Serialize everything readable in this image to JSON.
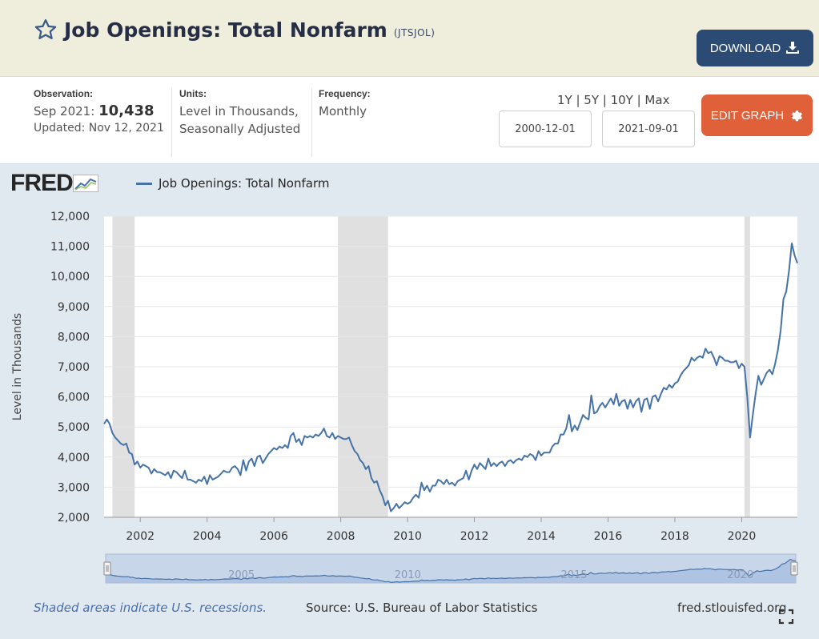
{
  "header": {
    "title": "Job Openings: Total Nonfarm",
    "code": "(JTSJOL)",
    "download_label": "DOWNLOAD"
  },
  "meta": {
    "observation_label": "Observation:",
    "observation_period": "Sep 2021:",
    "observation_value": "10,438",
    "updated": "Updated: Nov 12, 2021",
    "units_label": "Units:",
    "units_line1": "Level in Thousands,",
    "units_line2": "Seasonally Adjusted",
    "frequency_label": "Frequency:",
    "frequency_value": "Monthly",
    "ranges": "1Y | 5Y | 10Y | Max",
    "start_date": "2000-12-01",
    "end_date": "2021-09-01",
    "edit_label": "EDIT GRAPH"
  },
  "colors": {
    "series": "#4572a7",
    "download_bg": "#2b4a74",
    "edit_bg": "#e0603a",
    "header_bg": "#efeedc",
    "chart_bg": "#e1e9f0",
    "recession": "#e0e0e0"
  },
  "footer": {
    "recession_note": "Shaded areas indicate U.S. recessions.",
    "source": "Source: U.S. Bureau of Labor Statistics",
    "site": "fred.stlouisfed.org"
  },
  "logo_text": "FRED",
  "chart_data": {
    "type": "line",
    "title": "",
    "xlabel": "",
    "ylabel": "Level in Thousands",
    "ylim": [
      2000,
      12000
    ],
    "xlim": [
      2000.917,
      2021.667
    ],
    "yticks": [
      2000,
      3000,
      4000,
      5000,
      6000,
      7000,
      8000,
      9000,
      10000,
      11000,
      12000
    ],
    "ytick_labels": [
      "2,000",
      "3,000",
      "4,000",
      "5,000",
      "6,000",
      "7,000",
      "8,000",
      "9,000",
      "10,000",
      "11,000",
      "12,000"
    ],
    "xticks": [
      2002,
      2004,
      2006,
      2008,
      2010,
      2012,
      2014,
      2016,
      2018,
      2020
    ],
    "xtick_labels": [
      "2002",
      "2004",
      "2006",
      "2008",
      "2010",
      "2012",
      "2014",
      "2016",
      "2018",
      "2020"
    ],
    "grid": true,
    "legend": "top-left",
    "recessions": [
      [
        2001.167,
        2001.833
      ],
      [
        2007.917,
        2009.417
      ],
      [
        2020.083,
        2020.25
      ]
    ],
    "navigator_labels": [
      "2005",
      "2010",
      "2015",
      "2020"
    ],
    "series": [
      {
        "name": "Job Openings: Total Nonfarm",
        "points": [
          [
            2000.917,
            5100
          ],
          [
            2001.0,
            5250
          ],
          [
            2001.083,
            5100
          ],
          [
            2001.167,
            4800
          ],
          [
            2001.25,
            4650
          ],
          [
            2001.333,
            4550
          ],
          [
            2001.417,
            4450
          ],
          [
            2001.5,
            4400
          ],
          [
            2001.583,
            4450
          ],
          [
            2001.667,
            4150
          ],
          [
            2001.75,
            4100
          ],
          [
            2001.833,
            3750
          ],
          [
            2001.917,
            3850
          ],
          [
            2002.0,
            3650
          ],
          [
            2002.083,
            3750
          ],
          [
            2002.167,
            3700
          ],
          [
            2002.25,
            3650
          ],
          [
            2002.333,
            3450
          ],
          [
            2002.417,
            3600
          ],
          [
            2002.5,
            3500
          ],
          [
            2002.583,
            3500
          ],
          [
            2002.667,
            3450
          ],
          [
            2002.75,
            3400
          ],
          [
            2002.833,
            3500
          ],
          [
            2002.917,
            3300
          ],
          [
            2003.0,
            3550
          ],
          [
            2003.083,
            3500
          ],
          [
            2003.167,
            3400
          ],
          [
            2003.25,
            3300
          ],
          [
            2003.333,
            3550
          ],
          [
            2003.417,
            3250
          ],
          [
            2003.5,
            3250
          ],
          [
            2003.583,
            3200
          ],
          [
            2003.667,
            3150
          ],
          [
            2003.75,
            3250
          ],
          [
            2003.833,
            3200
          ],
          [
            2003.917,
            3350
          ],
          [
            2004.0,
            3100
          ],
          [
            2004.083,
            3400
          ],
          [
            2004.167,
            3250
          ],
          [
            2004.25,
            3300
          ],
          [
            2004.333,
            3350
          ],
          [
            2004.417,
            3450
          ],
          [
            2004.5,
            3550
          ],
          [
            2004.583,
            3500
          ],
          [
            2004.667,
            3500
          ],
          [
            2004.75,
            3650
          ],
          [
            2004.833,
            3700
          ],
          [
            2004.917,
            3600
          ],
          [
            2005.0,
            3400
          ],
          [
            2005.083,
            3900
          ],
          [
            2005.167,
            3550
          ],
          [
            2005.25,
            3850
          ],
          [
            2005.333,
            3950
          ],
          [
            2005.417,
            3700
          ],
          [
            2005.5,
            4000
          ],
          [
            2005.583,
            4050
          ],
          [
            2005.667,
            3800
          ],
          [
            2005.75,
            3950
          ],
          [
            2005.833,
            4100
          ],
          [
            2005.917,
            4200
          ],
          [
            2006.0,
            4300
          ],
          [
            2006.083,
            4250
          ],
          [
            2006.167,
            4350
          ],
          [
            2006.25,
            4300
          ],
          [
            2006.333,
            4400
          ],
          [
            2006.417,
            4300
          ],
          [
            2006.5,
            4700
          ],
          [
            2006.583,
            4800
          ],
          [
            2006.667,
            4500
          ],
          [
            2006.75,
            4600
          ],
          [
            2006.833,
            4400
          ],
          [
            2006.917,
            4700
          ],
          [
            2007.0,
            4650
          ],
          [
            2007.083,
            4700
          ],
          [
            2007.167,
            4650
          ],
          [
            2007.25,
            4750
          ],
          [
            2007.333,
            4700
          ],
          [
            2007.417,
            4800
          ],
          [
            2007.5,
            4950
          ],
          [
            2007.583,
            4700
          ],
          [
            2007.667,
            4650
          ],
          [
            2007.75,
            4800
          ],
          [
            2007.833,
            4600
          ],
          [
            2007.917,
            4700
          ],
          [
            2008.0,
            4650
          ],
          [
            2008.083,
            4600
          ],
          [
            2008.167,
            4600
          ],
          [
            2008.25,
            4650
          ],
          [
            2008.333,
            4400
          ],
          [
            2008.417,
            4200
          ],
          [
            2008.5,
            4100
          ],
          [
            2008.583,
            3900
          ],
          [
            2008.667,
            3800
          ],
          [
            2008.75,
            3600
          ],
          [
            2008.833,
            3700
          ],
          [
            2008.917,
            3300
          ],
          [
            2009.0,
            3150
          ],
          [
            2009.083,
            3200
          ],
          [
            2009.167,
            2900
          ],
          [
            2009.25,
            2700
          ],
          [
            2009.333,
            2400
          ],
          [
            2009.417,
            2550
          ],
          [
            2009.5,
            2200
          ],
          [
            2009.583,
            2300
          ],
          [
            2009.667,
            2450
          ],
          [
            2009.75,
            2300
          ],
          [
            2009.833,
            2400
          ],
          [
            2009.917,
            2500
          ],
          [
            2010.0,
            2450
          ],
          [
            2010.083,
            2500
          ],
          [
            2010.167,
            2650
          ],
          [
            2010.25,
            2750
          ],
          [
            2010.333,
            2650
          ],
          [
            2010.417,
            3150
          ],
          [
            2010.5,
            2900
          ],
          [
            2010.583,
            3050
          ],
          [
            2010.667,
            2850
          ],
          [
            2010.75,
            3050
          ],
          [
            2010.833,
            3050
          ],
          [
            2010.917,
            3250
          ],
          [
            2011.0,
            3200
          ],
          [
            2011.083,
            3100
          ],
          [
            2011.167,
            3250
          ],
          [
            2011.25,
            3100
          ],
          [
            2011.333,
            3150
          ],
          [
            2011.417,
            3050
          ],
          [
            2011.5,
            3200
          ],
          [
            2011.583,
            3250
          ],
          [
            2011.667,
            3300
          ],
          [
            2011.75,
            3550
          ],
          [
            2011.833,
            3250
          ],
          [
            2011.917,
            3550
          ],
          [
            2012.0,
            3750
          ],
          [
            2012.083,
            3600
          ],
          [
            2012.167,
            3800
          ],
          [
            2012.25,
            3700
          ],
          [
            2012.333,
            3600
          ],
          [
            2012.417,
            3950
          ],
          [
            2012.5,
            3700
          ],
          [
            2012.583,
            3800
          ],
          [
            2012.667,
            3700
          ],
          [
            2012.75,
            3800
          ],
          [
            2012.833,
            3850
          ],
          [
            2012.917,
            3700
          ],
          [
            2013.0,
            3850
          ],
          [
            2013.083,
            3900
          ],
          [
            2013.167,
            3800
          ],
          [
            2013.25,
            3900
          ],
          [
            2013.333,
            3950
          ],
          [
            2013.417,
            3900
          ],
          [
            2013.5,
            4050
          ],
          [
            2013.583,
            4000
          ],
          [
            2013.667,
            4100
          ],
          [
            2013.75,
            4050
          ],
          [
            2013.833,
            3900
          ],
          [
            2013.917,
            4200
          ],
          [
            2014.0,
            4050
          ],
          [
            2014.083,
            4150
          ],
          [
            2014.167,
            4150
          ],
          [
            2014.25,
            4150
          ],
          [
            2014.333,
            4350
          ],
          [
            2014.417,
            4450
          ],
          [
            2014.5,
            4450
          ],
          [
            2014.583,
            4750
          ],
          [
            2014.667,
            4750
          ],
          [
            2014.75,
            4950
          ],
          [
            2014.833,
            5400
          ],
          [
            2014.917,
            4850
          ],
          [
            2015.0,
            5050
          ],
          [
            2015.083,
            4900
          ],
          [
            2015.167,
            5150
          ],
          [
            2015.25,
            5400
          ],
          [
            2015.333,
            5300
          ],
          [
            2015.417,
            5250
          ],
          [
            2015.5,
            6050
          ],
          [
            2015.583,
            5450
          ],
          [
            2015.667,
            5500
          ],
          [
            2015.75,
            5700
          ],
          [
            2015.833,
            5800
          ],
          [
            2015.917,
            5650
          ],
          [
            2016.0,
            5800
          ],
          [
            2016.083,
            5950
          ],
          [
            2016.167,
            5750
          ],
          [
            2016.25,
            6100
          ],
          [
            2016.333,
            5700
          ],
          [
            2016.417,
            5850
          ],
          [
            2016.5,
            5900
          ],
          [
            2016.583,
            5600
          ],
          [
            2016.667,
            5900
          ],
          [
            2016.75,
            5650
          ],
          [
            2016.833,
            5850
          ],
          [
            2016.917,
            5950
          ],
          [
            2017.0,
            5500
          ],
          [
            2017.083,
            5900
          ],
          [
            2017.167,
            5950
          ],
          [
            2017.25,
            5600
          ],
          [
            2017.333,
            6000
          ],
          [
            2017.417,
            6050
          ],
          [
            2017.5,
            5850
          ],
          [
            2017.583,
            6100
          ],
          [
            2017.667,
            6300
          ],
          [
            2017.75,
            6250
          ],
          [
            2017.833,
            6400
          ],
          [
            2017.917,
            6300
          ],
          [
            2018.0,
            6450
          ],
          [
            2018.083,
            6500
          ],
          [
            2018.167,
            6700
          ],
          [
            2018.25,
            6850
          ],
          [
            2018.333,
            6950
          ],
          [
            2018.417,
            7050
          ],
          [
            2018.5,
            7300
          ],
          [
            2018.583,
            7200
          ],
          [
            2018.667,
            7300
          ],
          [
            2018.75,
            7350
          ],
          [
            2018.833,
            7300
          ],
          [
            2018.917,
            7600
          ],
          [
            2019.0,
            7450
          ],
          [
            2019.083,
            7500
          ],
          [
            2019.167,
            7300
          ],
          [
            2019.25,
            7050
          ],
          [
            2019.333,
            7350
          ],
          [
            2019.417,
            7300
          ],
          [
            2019.5,
            7200
          ],
          [
            2019.583,
            7200
          ],
          [
            2019.667,
            7150
          ],
          [
            2019.75,
            7150
          ],
          [
            2019.833,
            7200
          ],
          [
            2019.917,
            6950
          ],
          [
            2020.0,
            7100
          ],
          [
            2020.083,
            7000
          ],
          [
            2020.167,
            6000
          ],
          [
            2020.25,
            4650
          ],
          [
            2020.333,
            5400
          ],
          [
            2020.417,
            6100
          ],
          [
            2020.5,
            6700
          ],
          [
            2020.583,
            6400
          ],
          [
            2020.667,
            6600
          ],
          [
            2020.75,
            6800
          ],
          [
            2020.833,
            6900
          ],
          [
            2020.917,
            6750
          ],
          [
            2021.0,
            7100
          ],
          [
            2021.083,
            7550
          ],
          [
            2021.167,
            8200
          ],
          [
            2021.25,
            9250
          ],
          [
            2021.333,
            9500
          ],
          [
            2021.417,
            10200
          ],
          [
            2021.5,
            11100
          ],
          [
            2021.583,
            10700
          ],
          [
            2021.667,
            10438
          ]
        ]
      }
    ]
  }
}
